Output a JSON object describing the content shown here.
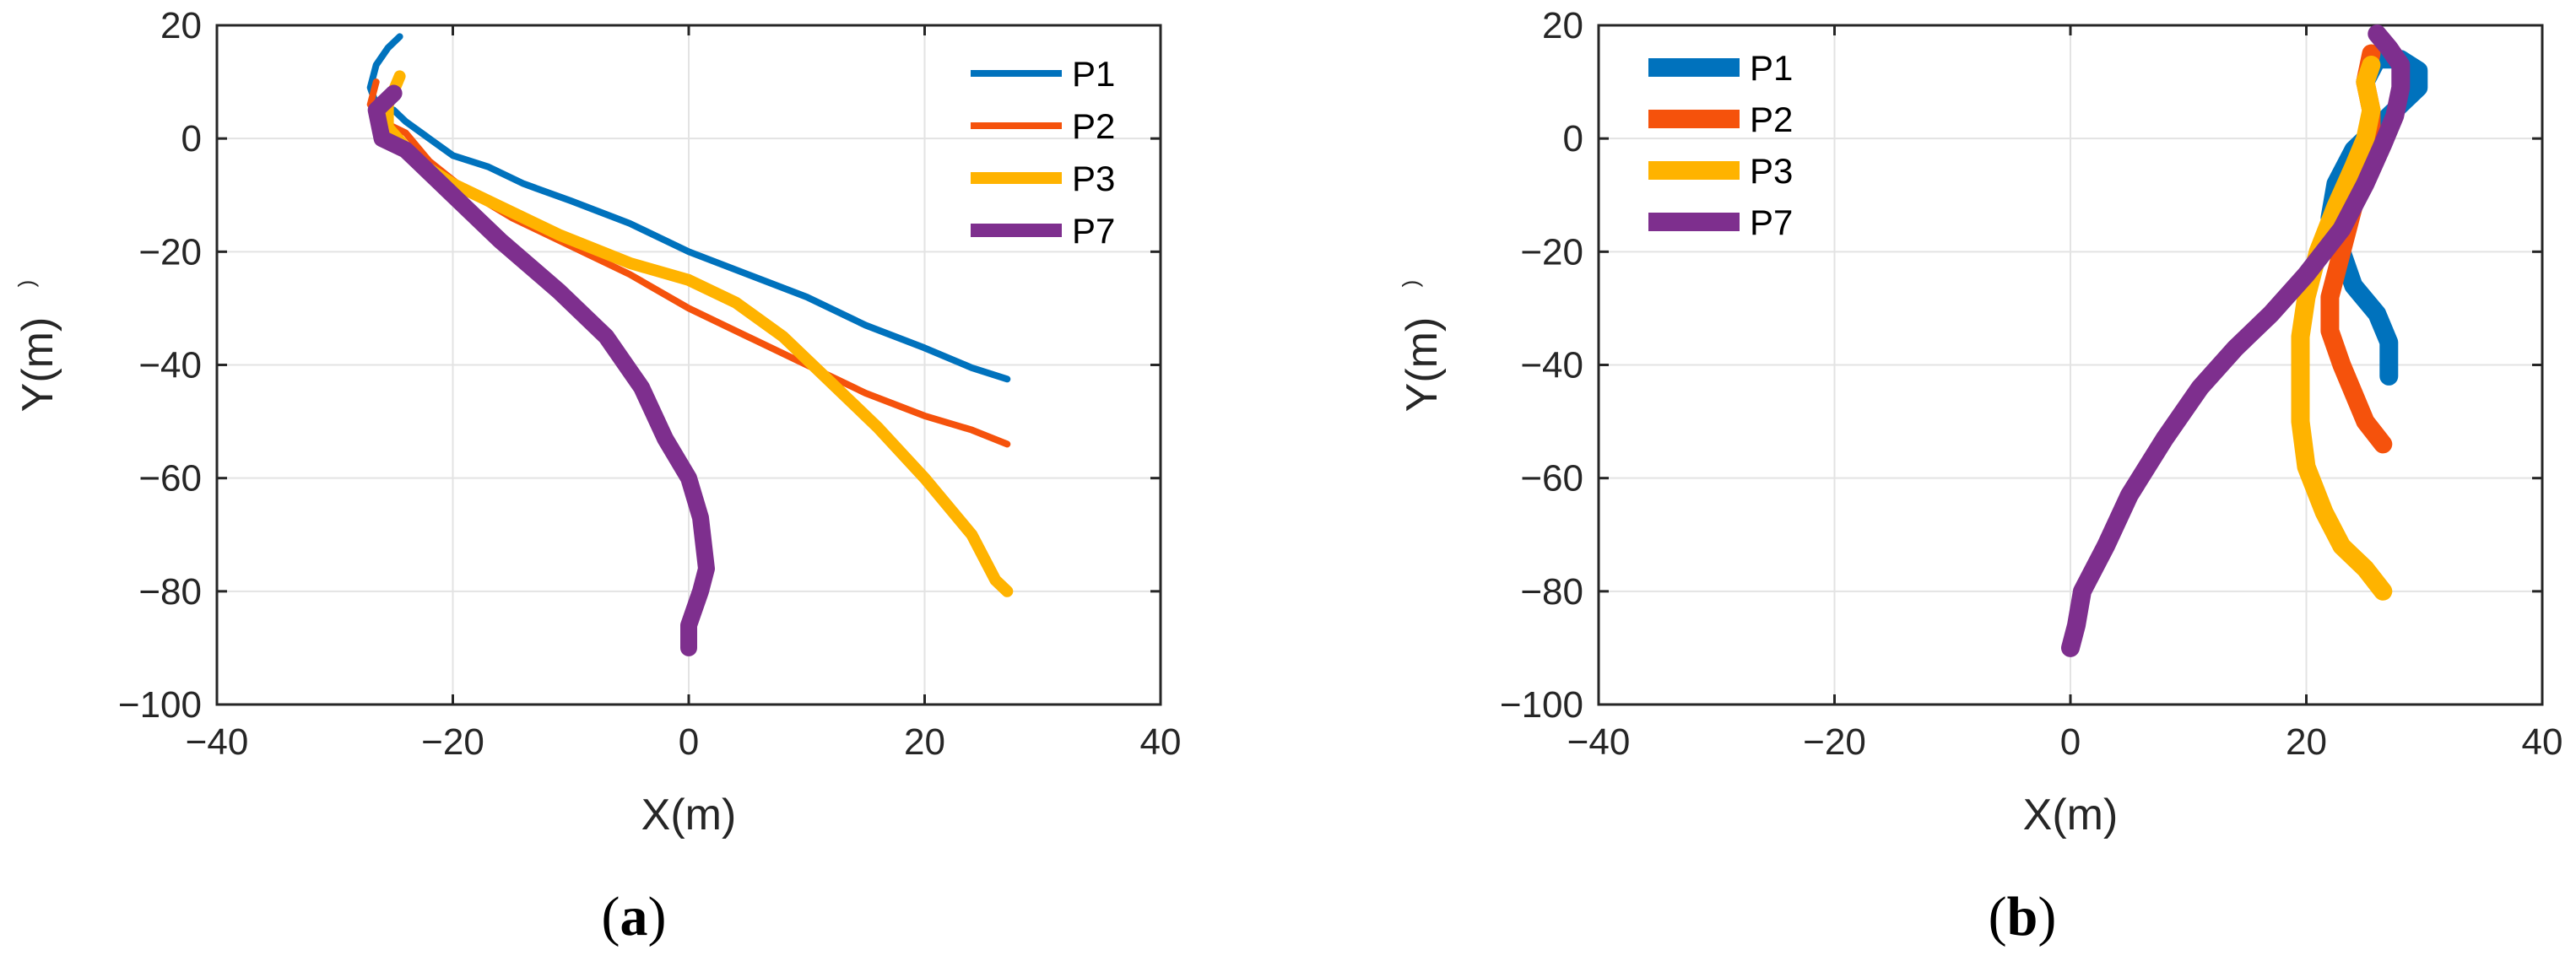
{
  "colors": {
    "P1": "#0072BD",
    "P2": "#F5520C",
    "P3": "#FFB300",
    "P7": "#7E2F8E",
    "grid": "#E3E3E3",
    "axes": "#262626"
  },
  "chart_data": [
    {
      "type": "line",
      "panel": "a",
      "caption_open": "(",
      "caption_letter": "a",
      "caption_close": ")",
      "title": "",
      "xlabel": "X(m)",
      "ylabel": "Y(m)",
      "ylabel_suffix": ")",
      "xlim": [
        -40,
        40
      ],
      "ylim": [
        -100,
        20
      ],
      "xticks": [
        -40,
        -20,
        0,
        20,
        40
      ],
      "xtick_labels": [
        "−40",
        "−20",
        "0",
        "20",
        "40"
      ],
      "yticks": [
        20,
        0,
        -20,
        -40,
        -60,
        -80,
        -100
      ],
      "ytick_labels": [
        "20",
        "0",
        "−20",
        "−40",
        "−60",
        "−80",
        "−100"
      ],
      "grid": true,
      "legend_position": "top-right",
      "series": [
        {
          "name": "P1",
          "width": "thin",
          "points": [
            [
              -24.5,
              18
            ],
            [
              -25.5,
              16
            ],
            [
              -26.5,
              13
            ],
            [
              -27,
              9
            ],
            [
              -26.5,
              6
            ],
            [
              -25,
              5
            ],
            [
              -24,
              3
            ],
            [
              -22,
              0
            ],
            [
              -20,
              -3
            ],
            [
              -17,
              -5
            ],
            [
              -14,
              -8
            ],
            [
              -10,
              -11
            ],
            [
              -5,
              -15
            ],
            [
              0,
              -20
            ],
            [
              5,
              -24
            ],
            [
              10,
              -28
            ],
            [
              15,
              -33
            ],
            [
              20,
              -37
            ],
            [
              24,
              -40.5
            ],
            [
              27,
              -42.5
            ]
          ]
        },
        {
          "name": "P2",
          "width": "thin",
          "points": [
            [
              -26.5,
              10
            ],
            [
              -27,
              6
            ],
            [
              -26,
              3
            ],
            [
              -24,
              1
            ],
            [
              -22,
              -4
            ],
            [
              -19,
              -9
            ],
            [
              -15,
              -14
            ],
            [
              -10,
              -19
            ],
            [
              -5,
              -24
            ],
            [
              0,
              -30
            ],
            [
              5,
              -35
            ],
            [
              10,
              -40
            ],
            [
              15,
              -45
            ],
            [
              20,
              -49
            ],
            [
              24,
              -51.5
            ],
            [
              27,
              -54
            ]
          ]
        },
        {
          "name": "P3",
          "width": "thick",
          "points": [
            [
              -24.5,
              11
            ],
            [
              -25.5,
              6
            ],
            [
              -25.5,
              2
            ],
            [
              -23,
              -4
            ],
            [
              -20,
              -8
            ],
            [
              -16,
              -12
            ],
            [
              -11,
              -17
            ],
            [
              -5,
              -22
            ],
            [
              0,
              -25
            ],
            [
              4,
              -29
            ],
            [
              8,
              -35
            ],
            [
              12,
              -43
            ],
            [
              16,
              -51
            ],
            [
              20,
              -60
            ],
            [
              24,
              -70
            ],
            [
              26,
              -78
            ],
            [
              27,
              -80
            ]
          ]
        },
        {
          "name": "P7",
          "width": "thicker",
          "points": [
            [
              -25,
              8
            ],
            [
              -26.5,
              5
            ],
            [
              -26,
              0
            ],
            [
              -24,
              -2
            ],
            [
              -23,
              -4
            ],
            [
              -20,
              -10
            ],
            [
              -16,
              -18
            ],
            [
              -11,
              -27
            ],
            [
              -7,
              -35
            ],
            [
              -4,
              -44
            ],
            [
              -2,
              -53
            ],
            [
              0,
              -60
            ],
            [
              1,
              -67
            ],
            [
              1.5,
              -76
            ],
            [
              1,
              -80
            ],
            [
              0,
              -86
            ],
            [
              0,
              -90
            ]
          ]
        }
      ],
      "legend": [
        "P1",
        "P2",
        "P3",
        "P7"
      ]
    },
    {
      "type": "line",
      "panel": "b",
      "caption_open": "(",
      "caption_letter": "b",
      "caption_close": ")",
      "title": "",
      "xlabel": "X(m)",
      "ylabel": "Y(m)",
      "ylabel_suffix": ")",
      "xlim": [
        -40,
        40
      ],
      "ylim": [
        -100,
        20
      ],
      "xticks": [
        -40,
        -20,
        0,
        20,
        40
      ],
      "xtick_labels": [
        "−40",
        "−20",
        "0",
        "20",
        "40"
      ],
      "yticks": [
        20,
        0,
        -20,
        -40,
        -60,
        -80,
        -100
      ],
      "ytick_labels": [
        "20",
        "0",
        "−20",
        "−40",
        "−60",
        "−80",
        "−100"
      ],
      "grid": true,
      "legend_position": "top-left",
      "series": [
        {
          "name": "P1",
          "width": "heavy",
          "points": [
            [
              27,
              -42
            ],
            [
              27,
              -36
            ],
            [
              26,
              -31
            ],
            [
              24,
              -26
            ],
            [
              23,
              -20
            ],
            [
              22,
              -14
            ],
            [
              22.5,
              -8
            ],
            [
              24,
              -2
            ],
            [
              26,
              2
            ],
            [
              28,
              6
            ],
            [
              29.5,
              9
            ],
            [
              29.5,
              12
            ],
            [
              28,
              14
            ],
            [
              26,
              14
            ],
            [
              25,
              10
            ]
          ]
        },
        {
          "name": "P2",
          "width": "heavy",
          "points": [
            [
              26.5,
              -54
            ],
            [
              25,
              -50
            ],
            [
              24,
              -45
            ],
            [
              23,
              -40
            ],
            [
              22,
              -34
            ],
            [
              22,
              -28
            ],
            [
              23,
              -20
            ],
            [
              24,
              -12
            ],
            [
              25,
              -6
            ],
            [
              25.5,
              -1
            ],
            [
              25.5,
              5
            ],
            [
              25,
              10
            ],
            [
              25.5,
              15
            ]
          ]
        },
        {
          "name": "P3",
          "width": "heavy",
          "points": [
            [
              26.5,
              -80
            ],
            [
              25,
              -76
            ],
            [
              23,
              -72
            ],
            [
              21.5,
              -66
            ],
            [
              20,
              -58
            ],
            [
              19.5,
              -50
            ],
            [
              19.5,
              -42
            ],
            [
              19.5,
              -35
            ],
            [
              20,
              -28
            ],
            [
              21,
              -20
            ],
            [
              22.5,
              -12
            ],
            [
              24,
              -5
            ],
            [
              25,
              0
            ],
            [
              25.5,
              5
            ],
            [
              25,
              10
            ],
            [
              25.5,
              13
            ]
          ]
        },
        {
          "name": "P7",
          "width": "heavy",
          "points": [
            [
              0,
              -90
            ],
            [
              0.5,
              -86
            ],
            [
              1,
              -80
            ],
            [
              3,
              -72
            ],
            [
              5,
              -63
            ],
            [
              8,
              -53
            ],
            [
              11,
              -44
            ],
            [
              14,
              -37
            ],
            [
              17,
              -31
            ],
            [
              20,
              -24
            ],
            [
              23,
              -16
            ],
            [
              25,
              -8
            ],
            [
              26.5,
              -1
            ],
            [
              27.5,
              4
            ],
            [
              28,
              9
            ],
            [
              28,
              13
            ],
            [
              27,
              16
            ],
            [
              26,
              18.5
            ]
          ]
        }
      ],
      "legend": [
        "P1",
        "P2",
        "P3",
        "P7"
      ]
    }
  ]
}
